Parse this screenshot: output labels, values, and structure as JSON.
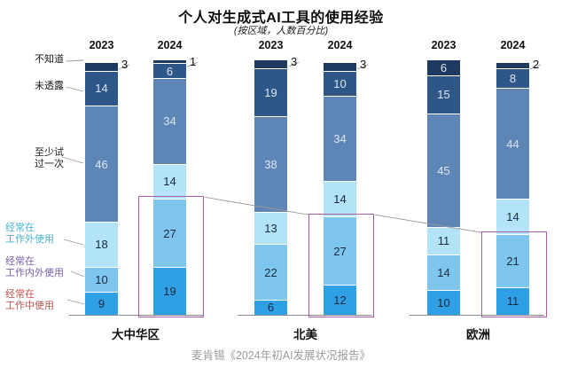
{
  "chart_data": {
    "type": "bar",
    "stacked": true,
    "title": "个人对生成式AI工具的使用经验",
    "subtitle": "(按区域，人数百分比)",
    "source": "麦肯锡《2024年初AI发展状况报告》",
    "unit": "percent_of_people",
    "axis": {
      "max": 100,
      "grid": false,
      "value_labels": "on_segments"
    },
    "legend_position": "left-category-labels",
    "segment_categories": [
      {
        "label": "不知道",
        "display_lines": [
          "不知道"
        ],
        "color": "#1e3a60",
        "label_color": "#1a1a1a",
        "text": "light"
      },
      {
        "label": "未透露",
        "display_lines": [
          "未透露"
        ],
        "color": "#2e5687",
        "label_color": "#1a1a1a",
        "text": "light"
      },
      {
        "label": "至少试过一次",
        "display_lines": [
          "至少试",
          "过一次"
        ],
        "color": "#5d86b6",
        "label_color": "#1a1a1a",
        "text": "light"
      },
      {
        "label": "经常在工作外使用",
        "display_lines": [
          "经常在",
          "工作外使用"
        ],
        "color": "#b3e3f8",
        "label_color": "#45b5d6",
        "text": "dark"
      },
      {
        "label": "经常在工作内外使用",
        "display_lines": [
          "经常在",
          "工作内外使用"
        ],
        "color": "#7fc6ef",
        "label_color": "#7a5fa8",
        "text": "dark"
      },
      {
        "label": "经常在工作中使用",
        "display_lines": [
          "经常在",
          "工作中使用"
        ],
        "color": "#2f9fe6",
        "label_color": "#c4534f",
        "text": "dark"
      }
    ],
    "groups": [
      {
        "region": "大中华区",
        "bars": [
          {
            "year": "2023",
            "values": [
              3,
              14,
              46,
              18,
              10,
              9
            ],
            "highlight": false
          },
          {
            "year": "2024",
            "values": [
              1,
              6,
              34,
              14,
              27,
              19
            ],
            "highlight": true
          }
        ]
      },
      {
        "region": "北美",
        "bars": [
          {
            "year": "2023",
            "values": [
              3,
              19,
              38,
              13,
              22,
              6
            ],
            "highlight": false
          },
          {
            "year": "2024",
            "values": [
              3,
              10,
              34,
              14,
              27,
              12
            ],
            "highlight": true
          }
        ]
      },
      {
        "region": "欧洲",
        "bars": [
          {
            "year": "2023",
            "values": [
              6,
              15,
              45,
              11,
              14,
              10
            ],
            "highlight": false
          },
          {
            "year": "2024",
            "values": [
              2,
              8,
              44,
              14,
              21,
              11
            ],
            "highlight": true
          }
        ]
      }
    ],
    "highlight_box_color": "#a95aa8"
  }
}
